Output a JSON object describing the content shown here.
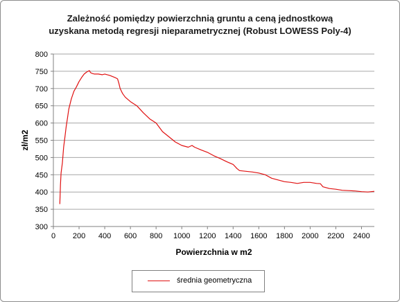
{
  "chart_data": {
    "type": "line",
    "title_lines": [
      "Zależność pomiędzy powierzchnią gruntu a ceną jednostkową",
      "uzyskana metodą regresji nieparametrycznej (Robust LOWESS Poly-4)"
    ],
    "xlabel": "Powierzchnia  w m2",
    "ylabel": "zł/m2",
    "xlim": [
      0,
      2500
    ],
    "ylim": [
      300,
      800
    ],
    "x_ticks": [
      0,
      200,
      400,
      600,
      800,
      1000,
      1200,
      1400,
      1600,
      1800,
      2000,
      2200,
      2400
    ],
    "y_ticks": [
      300,
      350,
      400,
      450,
      500,
      550,
      600,
      650,
      700,
      750,
      800
    ],
    "grid": "horizontal",
    "legend_position": "bottom",
    "colors": {
      "series": "#e01010",
      "grid": "#a6a6a6",
      "axis": "#808080"
    },
    "series": [
      {
        "name": "średnia geometryczna",
        "x": [
          50,
          55,
          60,
          70,
          80,
          90,
          100,
          110,
          120,
          140,
          160,
          180,
          200,
          220,
          240,
          260,
          280,
          290,
          300,
          320,
          350,
          380,
          400,
          420,
          440,
          460,
          480,
          500,
          510,
          520,
          530,
          540,
          560,
          600,
          650,
          700,
          750,
          800,
          850,
          900,
          950,
          1000,
          1050,
          1080,
          1100,
          1150,
          1200,
          1250,
          1300,
          1350,
          1400,
          1430,
          1450,
          1500,
          1550,
          1600,
          1650,
          1700,
          1750,
          1800,
          1850,
          1900,
          1950,
          2000,
          2050,
          2080,
          2100,
          2150,
          2200,
          2250,
          2300,
          2350,
          2400,
          2450,
          2500
        ],
        "values": [
          365,
          420,
          455,
          485,
          530,
          560,
          590,
          615,
          640,
          670,
          692,
          705,
          720,
          732,
          742,
          748,
          752,
          746,
          744,
          742,
          742,
          740,
          742,
          740,
          738,
          735,
          732,
          728,
          715,
          700,
          692,
          685,
          675,
          662,
          650,
          630,
          612,
          600,
          575,
          560,
          545,
          535,
          530,
          535,
          530,
          522,
          515,
          505,
          497,
          488,
          480,
          468,
          462,
          460,
          458,
          455,
          450,
          440,
          435,
          430,
          428,
          425,
          428,
          428,
          425,
          424,
          415,
          410,
          408,
          405,
          404,
          403,
          401,
          400,
          402
        ]
      }
    ]
  }
}
